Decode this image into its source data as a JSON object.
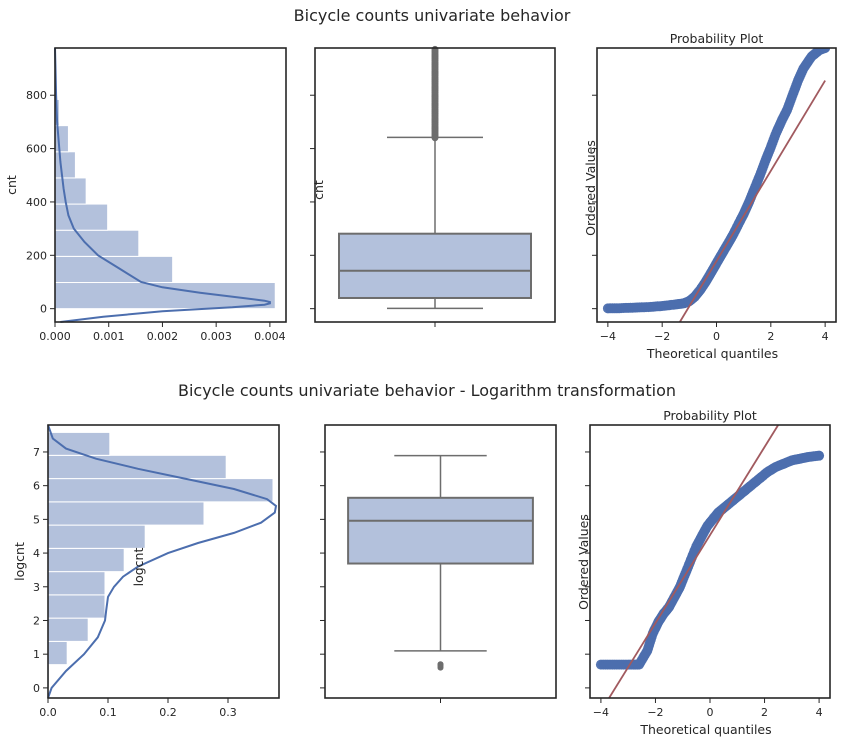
{
  "figure": {
    "title_top": "Bicycle counts univariate behavior",
    "title_bottom": "Bicycle counts univariate behavior - Logarithm transformation"
  },
  "chart_data": [
    {
      "type": "bar",
      "title": "",
      "orientation": "horizontal",
      "ylabel": "cnt",
      "xlabel": "",
      "xlim": [
        0,
        0.0043
      ],
      "ylim": [
        -50,
        977
      ],
      "xticks": [
        "0.000",
        "0.001",
        "0.002",
        "0.003",
        "0.004"
      ],
      "yticks": [
        "0",
        "200",
        "400",
        "600",
        "800"
      ],
      "bins": [
        {
          "y0": 0,
          "y1": 98,
          "value": 0.0041
        },
        {
          "y0": 98,
          "y1": 196,
          "value": 0.00219
        },
        {
          "y0": 196,
          "y1": 294,
          "value": 0.00156
        },
        {
          "y0": 294,
          "y1": 392,
          "value": 0.00098
        },
        {
          "y0": 392,
          "y1": 490,
          "value": 0.00058
        },
        {
          "y0": 490,
          "y1": 588,
          "value": 0.00038
        },
        {
          "y0": 588,
          "y1": 686,
          "value": 0.00025
        },
        {
          "y0": 686,
          "y1": 784,
          "value": 8e-05
        },
        {
          "y0": 784,
          "y1": 882,
          "value": 3e-05
        },
        {
          "y0": 882,
          "y1": 977,
          "value": 1e-05
        }
      ],
      "kde": {
        "y": [
          -50,
          -30,
          -10,
          5,
          15,
          20,
          25,
          30,
          40,
          60,
          80,
          100,
          150,
          200,
          250,
          300,
          350,
          400,
          450,
          500,
          550,
          600,
          650,
          700,
          800,
          900,
          977
        ],
        "x": [
          0.0001,
          0.0009,
          0.002,
          0.0033,
          0.0039,
          0.004,
          0.004,
          0.0039,
          0.0035,
          0.0027,
          0.002,
          0.0016,
          0.0012,
          0.0008,
          0.00055,
          0.00035,
          0.00025,
          0.0002,
          0.00016,
          0.00013,
          0.0001,
          8e-05,
          6e-05,
          4e-05,
          2e-05,
          1e-05,
          0.0
        ]
      },
      "colors": {
        "bar": "#b3c1dc",
        "line": "#4c6eae"
      }
    },
    {
      "type": "box",
      "title": "",
      "orientation": "vertical",
      "ylabel": "cnt",
      "ylim": [
        -50,
        977
      ],
      "box": {
        "min": 1,
        "q1": 40,
        "median": 142,
        "q3": 281,
        "whisker_high": 642,
        "outliers_from": 642,
        "outliers_to": 977
      },
      "colors": {
        "box": "#b3c1dc",
        "edge": "#6d6d6d"
      }
    },
    {
      "type": "scatter",
      "title": "Probability Plot",
      "xlabel": "Theoretical quantiles",
      "ylabel": "Ordered Values",
      "xlim": [
        -4.4,
        4.4
      ],
      "ylim": [
        -50,
        977
      ],
      "xticks": [
        "−4",
        "−2",
        "0",
        "2",
        "4"
      ],
      "points": {
        "x": [
          -4.0,
          -3.5,
          -3.0,
          -2.5,
          -2.0,
          -1.5,
          -1.2,
          -1.0,
          -0.8,
          -0.6,
          -0.4,
          -0.2,
          0.0,
          0.2,
          0.4,
          0.6,
          0.8,
          1.0,
          1.2,
          1.4,
          1.6,
          1.8,
          2.0,
          2.2,
          2.4,
          2.6,
          2.8,
          3.0,
          3.2,
          3.5,
          3.8,
          4.0
        ],
        "y": [
          1,
          2,
          4,
          6,
          10,
          16,
          20,
          28,
          45,
          70,
          100,
          135,
          170,
          205,
          240,
          275,
          315,
          355,
          400,
          450,
          500,
          555,
          605,
          660,
          705,
          745,
          800,
          855,
          900,
          945,
          970,
          977
        ]
      },
      "fit_line": {
        "x": [
          -1.35,
          4.0
        ],
        "y": [
          -50,
          855
        ]
      },
      "colors": {
        "point": "#4c6eae",
        "line": "#a15a5f"
      }
    },
    {
      "type": "bar",
      "title": "",
      "orientation": "horizontal",
      "ylabel": "logcnt",
      "xlabel": "",
      "xlim": [
        0,
        0.385
      ],
      "ylim": [
        -0.3,
        7.8
      ],
      "xticks": [
        "0.0",
        "0.1",
        "0.2",
        "0.3"
      ],
      "yticks": [
        "0",
        "1",
        "2",
        "3",
        "4",
        "5",
        "6",
        "7"
      ],
      "bins": [
        {
          "y0": 0.0,
          "y1": 0.69,
          "value": 0.002
        },
        {
          "y0": 0.69,
          "y1": 1.38,
          "value": 0.032
        },
        {
          "y0": 1.38,
          "y1": 2.07,
          "value": 0.067
        },
        {
          "y0": 2.07,
          "y1": 2.76,
          "value": 0.095
        },
        {
          "y0": 2.76,
          "y1": 3.45,
          "value": 0.095
        },
        {
          "y0": 3.45,
          "y1": 4.14,
          "value": 0.127
        },
        {
          "y0": 4.14,
          "y1": 4.83,
          "value": 0.162
        },
        {
          "y0": 4.83,
          "y1": 5.52,
          "value": 0.26
        },
        {
          "y0": 5.52,
          "y1": 6.21,
          "value": 0.375
        },
        {
          "y0": 6.21,
          "y1": 6.9,
          "value": 0.297
        },
        {
          "y0": 6.9,
          "y1": 7.58,
          "value": 0.103
        }
      ],
      "kde": {
        "y": [
          -0.3,
          0.0,
          0.5,
          1.0,
          1.5,
          2.0,
          2.3,
          2.7,
          3.0,
          3.3,
          3.6,
          4.0,
          4.3,
          4.6,
          4.9,
          5.2,
          5.4,
          5.6,
          5.9,
          6.2,
          6.5,
          6.8,
          7.1,
          7.4,
          7.8
        ],
        "x": [
          0.0,
          0.006,
          0.03,
          0.06,
          0.083,
          0.095,
          0.097,
          0.1,
          0.11,
          0.125,
          0.15,
          0.2,
          0.25,
          0.31,
          0.355,
          0.378,
          0.38,
          0.365,
          0.31,
          0.23,
          0.15,
          0.08,
          0.03,
          0.008,
          0.0
        ]
      },
      "colors": {
        "bar": "#b3c1dc",
        "line": "#4c6eae"
      }
    },
    {
      "type": "box",
      "title": "",
      "orientation": "vertical",
      "ylabel": "logcnt",
      "ylim": [
        -0.3,
        7.8
      ],
      "box": {
        "min": 1.1,
        "q1": 3.69,
        "median": 4.96,
        "q3": 5.64,
        "whisker_high": 6.89,
        "outliers": [
          0.6,
          0.65,
          0.69,
          0.7
        ]
      },
      "colors": {
        "box": "#b3c1dc",
        "edge": "#6d6d6d"
      }
    },
    {
      "type": "scatter",
      "title": "Probability Plot",
      "xlabel": "Theoretical quantiles",
      "ylabel": "Ordered Values",
      "xlim": [
        -4.4,
        4.4
      ],
      "ylim": [
        -0.3,
        7.8
      ],
      "xticks": [
        "−4",
        "−2",
        "0",
        "2",
        "4"
      ],
      "points": {
        "x": [
          -4.0,
          -3.5,
          -3.0,
          -2.6,
          -2.3,
          -2.1,
          -1.9,
          -1.7,
          -1.5,
          -1.3,
          -1.1,
          -0.9,
          -0.7,
          -0.5,
          -0.3,
          -0.1,
          0.1,
          0.3,
          0.6,
          0.9,
          1.2,
          1.5,
          1.8,
          2.1,
          2.4,
          2.7,
          3.0,
          3.3,
          3.6,
          4.0
        ],
        "y": [
          0.69,
          0.69,
          0.69,
          0.69,
          1.1,
          1.61,
          1.95,
          2.2,
          2.4,
          2.7,
          3.0,
          3.4,
          3.8,
          4.2,
          4.5,
          4.8,
          5.0,
          5.2,
          5.4,
          5.6,
          5.8,
          6.0,
          6.2,
          6.4,
          6.55,
          6.65,
          6.75,
          6.8,
          6.85,
          6.89
        ]
      },
      "fit_line": {
        "x": [
          -3.7,
          2.5
        ],
        "y": [
          -0.3,
          7.8
        ]
      },
      "colors": {
        "point": "#4c6eae",
        "line": "#a15a5f"
      }
    }
  ]
}
